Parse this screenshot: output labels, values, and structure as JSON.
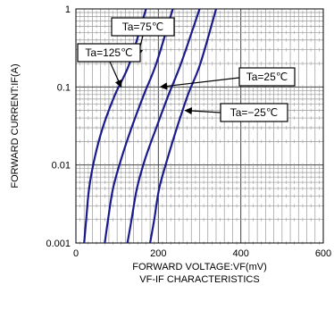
{
  "chart_data": {
    "type": "line",
    "title": "",
    "caption": "VF-IF CHARACTERISTICS",
    "xlabel": "FORWARD VOLTAGE:VF(mV)",
    "ylabel": "FORWARD CURRENT:IF(A)",
    "xlim": [
      0,
      600
    ],
    "ylim": [
      0.001,
      1
    ],
    "yscale": "log",
    "grid": true,
    "xticks": [
      {
        "v": 0,
        "label": "0"
      },
      {
        "v": 200,
        "label": "200"
      },
      {
        "v": 400,
        "label": "400"
      },
      {
        "v": 600,
        "label": "600"
      }
    ],
    "yticks": [
      {
        "v": 0.001,
        "label": "0.001"
      },
      {
        "v": 0.01,
        "label": "0.01"
      },
      {
        "v": 0.1,
        "label": "0.1"
      },
      {
        "v": 1,
        "label": "1"
      }
    ],
    "series": [
      {
        "name": "Ta=125℃",
        "color": "#1a1a8c",
        "x": [
          20,
          25,
          32,
          45,
          65,
          95,
          130,
          170
        ],
        "y": [
          0.001,
          0.002,
          0.005,
          0.012,
          0.03,
          0.08,
          0.2,
          1
        ]
      },
      {
        "name": "Ta=75℃",
        "color": "#1a1a8c",
        "x": [
          70,
          78,
          90,
          110,
          135,
          165,
          195,
          235
        ],
        "y": [
          0.001,
          0.002,
          0.005,
          0.012,
          0.03,
          0.08,
          0.2,
          1
        ]
      },
      {
        "name": "Ta=25℃",
        "color": "#1a1a8c",
        "x": [
          125,
          135,
          148,
          168,
          195,
          225,
          255,
          300
        ],
        "y": [
          0.001,
          0.002,
          0.005,
          0.012,
          0.03,
          0.08,
          0.2,
          1
        ]
      },
      {
        "name": "Ta=-25℃",
        "color": "#1a1a8c",
        "x": [
          180,
          190,
          202,
          222,
          245,
          272,
          302,
          340
        ],
        "y": [
          0.001,
          0.002,
          0.005,
          0.012,
          0.03,
          0.08,
          0.2,
          1
        ]
      }
    ],
    "annotations": [
      {
        "text": "Ta=75℃",
        "target": [
          150,
          0.25
        ]
      },
      {
        "text": "Ta=125℃",
        "target": [
          110,
          0.1
        ]
      },
      {
        "text": "Ta=25℃",
        "target": [
          205,
          0.1
        ]
      },
      {
        "text": "Ta=−25℃",
        "target": [
          265,
          0.05
        ]
      }
    ]
  }
}
